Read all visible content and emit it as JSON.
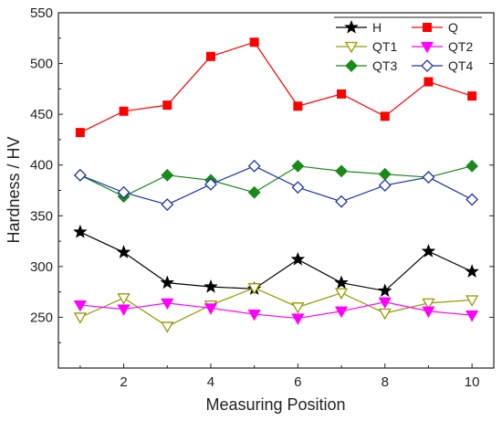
{
  "chart_data": {
    "type": "line",
    "xlabel": "Measuring Position",
    "ylabel": "Hardness / HV",
    "xlim": [
      0.5,
      10.5
    ],
    "ylim": [
      200,
      550
    ],
    "xticks": [
      2,
      4,
      6,
      8,
      10
    ],
    "yticks": [
      250,
      300,
      350,
      400,
      450,
      500,
      550
    ],
    "grid": false,
    "legend_position": "top-right",
    "x": [
      1,
      2,
      3,
      4,
      5,
      6,
      7,
      8,
      9,
      10
    ],
    "series": [
      {
        "name": "H",
        "color": "#000000",
        "marker": "star-filled",
        "values": [
          334,
          314,
          284,
          280,
          278,
          307,
          284,
          276,
          315,
          295
        ]
      },
      {
        "name": "Q",
        "color": "#ff0000",
        "marker": "square-filled",
        "values": [
          432,
          453,
          459,
          507,
          521,
          458,
          470,
          448,
          482,
          468
        ]
      },
      {
        "name": "QT1",
        "color": "#999900",
        "marker": "triangle-down-open",
        "values": [
          250,
          269,
          241,
          262,
          279,
          260,
          274,
          254,
          264,
          267
        ]
      },
      {
        "name": "QT2",
        "color": "#ff00ff",
        "marker": "triangle-down-filled",
        "values": [
          262,
          258,
          264,
          259,
          253,
          249,
          256,
          265,
          256,
          252
        ]
      },
      {
        "name": "QT3",
        "color": "#1a8a1a",
        "marker": "diamond-filled",
        "values": [
          390,
          369,
          390,
          385,
          373,
          399,
          394,
          391,
          388,
          399
        ]
      },
      {
        "name": "QT4",
        "color": "#2233aa",
        "marker": "diamond-open",
        "values": [
          390,
          373,
          361,
          381,
          399,
          378,
          364,
          380,
          388,
          366
        ]
      }
    ]
  }
}
